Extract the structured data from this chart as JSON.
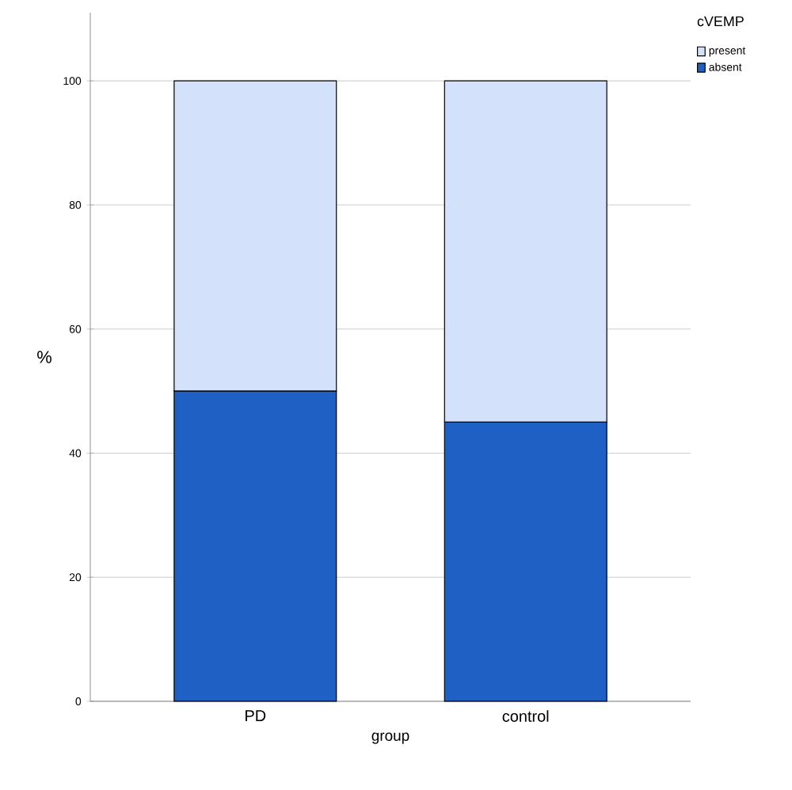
{
  "chart_data": {
    "type": "bar",
    "stacked": true,
    "xlabel": "group",
    "ylabel": "%",
    "legend_title": "cVEMP",
    "categories": [
      "PD",
      "control"
    ],
    "series": [
      {
        "name": "absent",
        "color": "#1f60c4",
        "values": [
          50,
          45
        ]
      },
      {
        "name": "present",
        "color": "#d3e2fa",
        "values": [
          50,
          55
        ]
      }
    ],
    "ylim": [
      0,
      111
    ],
    "yticks": [
      0,
      20,
      40,
      60,
      80,
      100
    ],
    "grid": "y",
    "legend": "top right"
  }
}
